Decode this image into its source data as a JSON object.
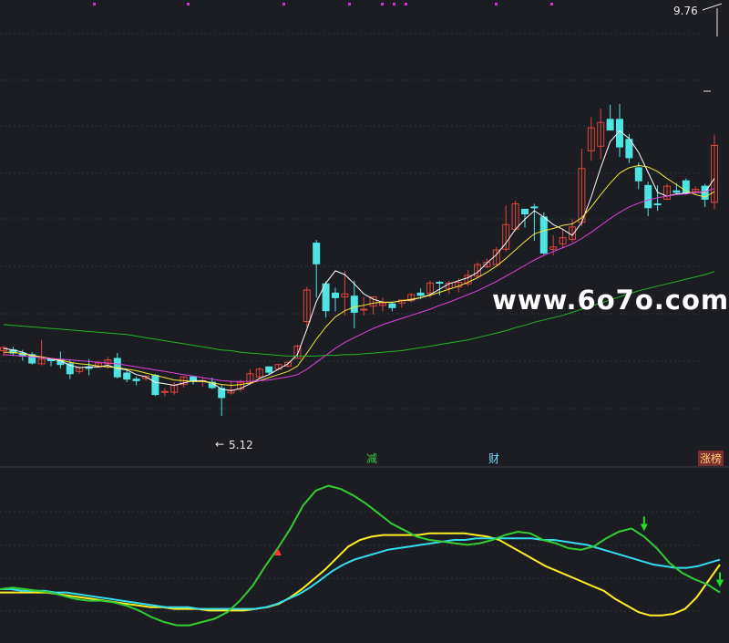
{
  "chart": {
    "price_high_label": "9.76",
    "price_low_label": "5.12",
    "price_low_arrow": "←",
    "watermark": "www.6o7o.com",
    "tags": {
      "jian": "减",
      "cai": "财",
      "zhangbang": "涨榜"
    }
  },
  "chart_data": [
    {
      "type": "candlestick",
      "title": "",
      "ylim": [
        4.6,
        10.2
      ],
      "annotations": {
        "high": 9.76,
        "low": 5.12
      },
      "candles": [
        [
          5.97,
          6.01,
          5.9,
          6.03
        ],
        [
          5.98,
          5.94,
          5.9,
          6.02
        ],
        [
          5.94,
          5.9,
          5.84,
          5.98
        ],
        [
          5.92,
          5.81,
          5.79,
          5.95
        ],
        [
          5.8,
          5.86,
          5.78,
          6.11
        ],
        [
          5.86,
          5.84,
          5.77,
          5.87
        ],
        [
          5.85,
          5.79,
          5.74,
          5.96
        ],
        [
          5.8,
          5.67,
          5.6,
          5.85
        ],
        [
          5.7,
          5.75,
          5.67,
          5.76
        ],
        [
          5.76,
          5.74,
          5.65,
          5.86
        ],
        [
          5.76,
          5.81,
          5.75,
          5.84
        ],
        [
          5.8,
          5.85,
          5.74,
          5.89
        ],
        [
          5.87,
          5.63,
          5.61,
          5.94
        ],
        [
          5.68,
          5.6,
          5.56,
          5.72
        ],
        [
          5.6,
          5.58,
          5.52,
          5.63
        ],
        [
          5.61,
          5.64,
          5.58,
          5.64
        ],
        [
          5.65,
          5.4,
          5.38,
          5.67
        ],
        [
          5.44,
          5.44,
          5.38,
          5.48
        ],
        [
          5.43,
          5.52,
          5.4,
          5.56
        ],
        [
          5.53,
          5.63,
          5.49,
          5.64
        ],
        [
          5.63,
          5.57,
          5.53,
          5.63
        ],
        [
          5.58,
          5.58,
          5.5,
          5.63
        ],
        [
          5.56,
          5.49,
          5.47,
          5.62
        ],
        [
          5.48,
          5.36,
          5.12,
          5.52
        ],
        [
          5.42,
          5.46,
          5.4,
          5.58
        ],
        [
          5.47,
          5.56,
          5.44,
          5.59
        ],
        [
          5.55,
          5.67,
          5.53,
          5.73
        ],
        [
          5.63,
          5.73,
          5.6,
          5.75
        ],
        [
          5.76,
          5.69,
          5.66,
          5.76
        ],
        [
          5.73,
          5.79,
          5.72,
          5.8
        ],
        [
          5.77,
          5.82,
          5.75,
          5.82
        ],
        [
          5.87,
          6.03,
          5.87,
          6.05
        ],
        [
          6.35,
          6.76,
          6.28,
          6.8
        ],
        [
          7.37,
          7.1,
          6.66,
          7.41
        ],
        [
          6.84,
          6.49,
          6.4,
          6.87
        ],
        [
          6.72,
          6.66,
          6.48,
          6.79
        ],
        [
          6.67,
          6.71,
          6.43,
          7.01
        ],
        [
          6.68,
          6.47,
          6.26,
          6.88
        ],
        [
          6.5,
          6.51,
          6.43,
          6.67
        ],
        [
          6.55,
          6.67,
          6.44,
          6.67
        ],
        [
          6.56,
          6.59,
          6.48,
          6.66
        ],
        [
          6.58,
          6.53,
          6.48,
          6.6
        ],
        [
          6.59,
          6.63,
          6.53,
          6.63
        ],
        [
          6.62,
          6.7,
          6.6,
          6.72
        ],
        [
          6.72,
          6.69,
          6.64,
          6.78
        ],
        [
          6.72,
          6.85,
          6.66,
          6.88
        ],
        [
          6.86,
          6.85,
          6.69,
          6.88
        ],
        [
          6.78,
          6.85,
          6.71,
          6.88
        ],
        [
          6.8,
          6.86,
          6.73,
          6.91
        ],
        [
          6.84,
          6.95,
          6.81,
          7.02
        ],
        [
          6.94,
          7.09,
          6.91,
          7.12
        ],
        [
          7.06,
          7.12,
          7.04,
          7.17
        ],
        [
          7.09,
          7.28,
          7.08,
          7.32
        ],
        [
          7.29,
          7.61,
          7.26,
          7.86
        ],
        [
          7.55,
          7.88,
          7.52,
          7.92
        ],
        [
          7.81,
          7.75,
          7.57,
          7.81
        ],
        [
          7.84,
          7.83,
          7.4,
          7.88
        ],
        [
          7.71,
          7.24,
          7.22,
          7.77
        ],
        [
          7.29,
          7.32,
          7.21,
          7.47
        ],
        [
          7.36,
          7.44,
          7.31,
          7.56
        ],
        [
          7.42,
          7.58,
          7.38,
          7.68
        ],
        [
          7.64,
          8.34,
          7.59,
          8.6
        ],
        [
          8.57,
          8.87,
          8.44,
          9.01
        ],
        [
          8.63,
          8.94,
          8.46,
          9.12
        ],
        [
          8.98,
          8.84,
          8.84,
          9.17
        ],
        [
          8.98,
          8.62,
          8.49,
          9.18
        ],
        [
          8.72,
          8.48,
          8.41,
          8.79
        ],
        [
          8.35,
          8.18,
          8.07,
          8.42
        ],
        [
          8.12,
          7.83,
          7.72,
          8.17
        ],
        [
          7.88,
          7.87,
          7.79,
          8.12
        ],
        [
          7.94,
          8.11,
          7.93,
          8.14
        ],
        [
          8.05,
          8.03,
          8.01,
          8.15
        ],
        [
          8.18,
          8.02,
          8.0,
          8.21
        ],
        [
          8.04,
          8.07,
          8.0,
          8.11
        ],
        [
          8.11,
          7.94,
          7.84,
          8.14
        ],
        [
          7.9,
          8.64,
          7.81,
          8.78
        ]
      ],
      "moving_averages": [
        {
          "color": "#ffffff",
          "values": [
            6.0,
            5.98,
            5.95,
            5.9,
            5.88,
            5.86,
            5.84,
            5.78,
            5.75,
            5.76,
            5.76,
            5.78,
            5.74,
            5.72,
            5.66,
            5.63,
            5.56,
            5.54,
            5.52,
            5.55,
            5.58,
            5.58,
            5.55,
            5.47,
            5.45,
            5.48,
            5.54,
            5.61,
            5.66,
            5.73,
            5.8,
            5.92,
            6.25,
            6.61,
            6.85,
            7.01,
            6.96,
            6.84,
            6.71,
            6.64,
            6.6,
            6.6,
            6.62,
            6.63,
            6.66,
            6.7,
            6.77,
            6.84,
            6.88,
            6.92,
            6.99,
            7.11,
            7.22,
            7.37,
            7.55,
            7.68,
            7.79,
            7.71,
            7.61,
            7.55,
            7.47,
            7.64,
            7.97,
            8.35,
            8.69,
            8.83,
            8.73,
            8.55,
            8.29,
            8.03,
            7.98,
            8.01,
            8.02,
            8.03,
            8.03,
            8.21
          ]
        },
        {
          "color": "#f5e63a",
          "values": [
            5.95,
            5.95,
            5.93,
            5.91,
            5.89,
            5.87,
            5.85,
            5.82,
            5.8,
            5.79,
            5.77,
            5.76,
            5.75,
            5.73,
            5.71,
            5.68,
            5.65,
            5.62,
            5.59,
            5.58,
            5.57,
            5.57,
            5.55,
            5.53,
            5.52,
            5.53,
            5.55,
            5.58,
            5.62,
            5.66,
            5.7,
            5.77,
            5.94,
            6.12,
            6.28,
            6.41,
            6.49,
            6.54,
            6.56,
            6.59,
            6.6,
            6.6,
            6.62,
            6.64,
            6.66,
            6.69,
            6.73,
            6.77,
            6.81,
            6.86,
            6.92,
            6.99,
            7.07,
            7.17,
            7.28,
            7.39,
            7.49,
            7.53,
            7.56,
            7.6,
            7.62,
            7.7,
            7.84,
            8.0,
            8.15,
            8.28,
            8.35,
            8.38,
            8.36,
            8.3,
            8.21,
            8.13,
            8.05,
            8.0,
            7.97,
            8.04
          ]
        },
        {
          "color": "#e040e0",
          "values": [
            5.92,
            5.91,
            5.9,
            5.89,
            5.88,
            5.87,
            5.86,
            5.85,
            5.84,
            5.83,
            5.82,
            5.81,
            5.8,
            5.78,
            5.76,
            5.74,
            5.72,
            5.7,
            5.68,
            5.66,
            5.64,
            5.62,
            5.6,
            5.58,
            5.57,
            5.57,
            5.57,
            5.58,
            5.59,
            5.61,
            5.63,
            5.66,
            5.73,
            5.82,
            5.91,
            6.0,
            6.08,
            6.14,
            6.2,
            6.26,
            6.31,
            6.35,
            6.39,
            6.43,
            6.47,
            6.51,
            6.56,
            6.6,
            6.65,
            6.7,
            6.75,
            6.81,
            6.87,
            6.94,
            7.01,
            7.08,
            7.15,
            7.21,
            7.26,
            7.31,
            7.36,
            7.43,
            7.51,
            7.6,
            7.69,
            7.77,
            7.84,
            7.89,
            7.93,
            7.96,
            7.98,
            8.0,
            8.01,
            8.03,
            8.04,
            8.08
          ]
        },
        {
          "color": "#27b327",
          "values": [
            6.31,
            6.3,
            6.29,
            6.28,
            6.27,
            6.26,
            6.25,
            6.24,
            6.23,
            6.22,
            6.21,
            6.2,
            6.19,
            6.18,
            6.16,
            6.14,
            6.12,
            6.1,
            6.08,
            6.06,
            6.04,
            6.02,
            6.0,
            5.98,
            5.97,
            5.95,
            5.94,
            5.93,
            5.92,
            5.91,
            5.9,
            5.9,
            5.9,
            5.9,
            5.91,
            5.91,
            5.92,
            5.92,
            5.93,
            5.94,
            5.95,
            5.96,
            5.97,
            5.99,
            6.01,
            6.03,
            6.05,
            6.07,
            6.09,
            6.11,
            6.14,
            6.17,
            6.2,
            6.23,
            6.27,
            6.3,
            6.34,
            6.37,
            6.4,
            6.43,
            6.47,
            6.51,
            6.55,
            6.59,
            6.63,
            6.67,
            6.71,
            6.75,
            6.78,
            6.81,
            6.84,
            6.87,
            6.9,
            6.93,
            6.96,
            7.0
          ]
        }
      ]
    },
    {
      "type": "line",
      "title": "",
      "ylim": [
        0,
        100
      ],
      "series": [
        {
          "color": "#ffee22",
          "values": [
            28,
            28,
            28,
            28,
            28,
            27,
            26,
            25,
            24,
            23,
            22,
            21,
            20,
            19,
            19,
            18,
            18,
            18,
            17,
            17,
            17,
            17,
            18,
            19,
            21,
            25,
            30,
            36,
            42,
            49,
            56,
            60,
            62,
            63,
            63,
            63,
            63,
            64,
            64,
            64,
            64,
            63,
            62,
            60,
            56,
            52,
            48,
            44,
            41,
            38,
            35,
            32,
            29,
            24,
            20,
            16,
            14,
            14,
            15,
            18,
            25,
            35,
            45
          ]
        },
        {
          "color": "#33ddee",
          "values": [
            30,
            30,
            29,
            29,
            29,
            28,
            28,
            27,
            26,
            25,
            24,
            23,
            22,
            21,
            20,
            19,
            19,
            19,
            18,
            18,
            18,
            18,
            18,
            18,
            19,
            21,
            24,
            27,
            31,
            36,
            41,
            45,
            48,
            50,
            52,
            54,
            55,
            56,
            57,
            58,
            59,
            60,
            60,
            61,
            61,
            61,
            61,
            61,
            61,
            60,
            60,
            59,
            58,
            57,
            55,
            53,
            51,
            49,
            47,
            45,
            44,
            43,
            43,
            44,
            46,
            48
          ]
        },
        {
          "color": "#33cc33",
          "values": [
            30,
            31,
            30,
            29,
            28,
            26,
            24,
            23,
            23,
            22,
            20,
            17,
            13,
            10,
            8,
            8,
            10,
            12,
            16,
            23,
            32,
            44,
            55,
            67,
            81,
            90,
            93,
            91,
            87,
            82,
            76,
            70,
            66,
            62,
            60,
            59,
            58,
            57,
            58,
            60,
            63,
            65,
            64,
            60,
            58,
            55,
            54,
            56,
            61,
            65,
            67,
            62,
            55,
            46,
            40,
            36,
            33,
            28
          ]
        }
      ],
      "markers": [
        {
          "index": 51,
          "color": "#22dd22",
          "dir": "down"
        },
        {
          "index": 63,
          "color": "#22dd22",
          "dir": "down"
        },
        {
          "index": 73,
          "color": "#22dd22",
          "dir": "down"
        },
        {
          "index": 22,
          "color": "#ff3333",
          "dir": "up"
        }
      ]
    }
  ]
}
